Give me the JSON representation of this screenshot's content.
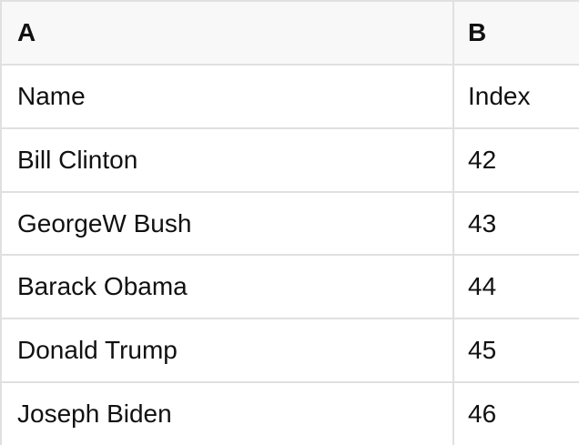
{
  "table": {
    "column_headers": [
      {
        "label": "A"
      },
      {
        "label": "B"
      }
    ],
    "rows": [
      {
        "cells": [
          "Name",
          "Index"
        ]
      },
      {
        "cells": [
          "Bill Clinton",
          "42"
        ]
      },
      {
        "cells": [
          "GeorgeW Bush",
          "43"
        ]
      },
      {
        "cells": [
          "Barack Obama",
          "44"
        ]
      },
      {
        "cells": [
          "Donald Trump",
          "45"
        ]
      },
      {
        "cells": [
          "Joseph Biden",
          "46"
        ]
      }
    ]
  },
  "colors": {
    "header_background": "#f8f8f8",
    "body_background": "#ffffff",
    "grid_border": "#e0e0e0",
    "text": "#111111"
  }
}
